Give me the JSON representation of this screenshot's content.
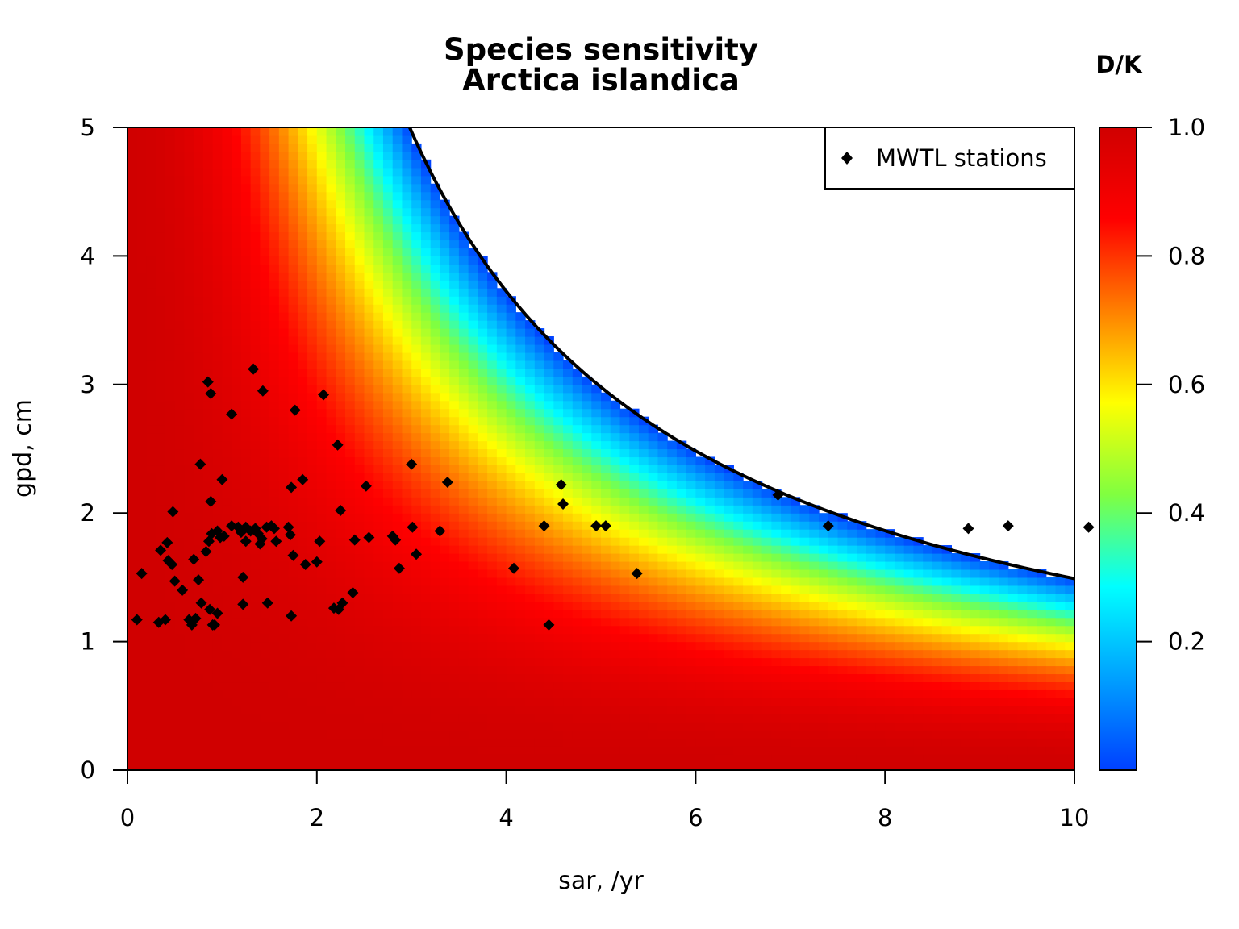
{
  "chart_data": {
    "type": "heatmap",
    "title": "Species sensitivity",
    "subtitle": "Arctica islandica",
    "xlabel": "sar, /yr",
    "ylabel": "gpd, cm",
    "xlim": [
      0,
      10
    ],
    "ylim": [
      0,
      5
    ],
    "x_ticks": [
      "0",
      "2",
      "4",
      "6",
      "8",
      "10"
    ],
    "y_ticks": [
      "0",
      "1",
      "2",
      "3",
      "4",
      "5"
    ],
    "surface": {
      "description_value": "D/K",
      "zero_contour_constant": 14.9,
      "colorscale": [
        "#0040ff",
        "#00a0ff",
        "#00ffff",
        "#80ff40",
        "#ffff00",
        "#ff8000",
        "#ff0000",
        "#d00000"
      ]
    },
    "colorbar": {
      "title": "D/K",
      "range": [
        0,
        1
      ],
      "ticks": [
        "0.2",
        "0.4",
        "0.6",
        "0.8",
        "1.0"
      ]
    },
    "legend": {
      "position": "top-right",
      "entries": [
        {
          "label": "MWTL stations",
          "marker": "diamond",
          "color": "#000000"
        }
      ]
    },
    "series": [
      {
        "name": "MWTL stations",
        "type": "scatter",
        "points": [
          [
            0.1,
            1.17
          ],
          [
            0.15,
            1.53
          ],
          [
            0.33,
            1.15
          ],
          [
            0.35,
            1.71
          ],
          [
            0.4,
            1.17
          ],
          [
            0.42,
            1.77
          ],
          [
            0.43,
            1.63
          ],
          [
            0.47,
            1.6
          ],
          [
            0.48,
            2.01
          ],
          [
            0.5,
            1.47
          ],
          [
            0.58,
            1.4
          ],
          [
            0.65,
            1.17
          ],
          [
            0.68,
            1.13
          ],
          [
            0.7,
            1.64
          ],
          [
            0.72,
            1.18
          ],
          [
            0.75,
            1.48
          ],
          [
            0.77,
            2.38
          ],
          [
            0.78,
            1.3
          ],
          [
            0.83,
            1.7
          ],
          [
            0.85,
            3.02
          ],
          [
            0.86,
            1.78
          ],
          [
            0.87,
            1.25
          ],
          [
            0.88,
            2.09
          ],
          [
            0.88,
            2.93
          ],
          [
            0.89,
            1.84
          ],
          [
            0.9,
            1.13
          ],
          [
            0.92,
            1.13
          ],
          [
            0.95,
            1.22
          ],
          [
            0.95,
            1.86
          ],
          [
            0.98,
            1.81
          ],
          [
            1.0,
            2.26
          ],
          [
            1.02,
            1.82
          ],
          [
            1.1,
            1.9
          ],
          [
            1.1,
            2.77
          ],
          [
            1.17,
            1.89
          ],
          [
            1.2,
            1.85
          ],
          [
            1.22,
            1.5
          ],
          [
            1.22,
            1.29
          ],
          [
            1.25,
            1.78
          ],
          [
            1.25,
            1.89
          ],
          [
            1.3,
            1.86
          ],
          [
            1.33,
            3.12
          ],
          [
            1.35,
            1.88
          ],
          [
            1.38,
            1.84
          ],
          [
            1.4,
            1.76
          ],
          [
            1.42,
            1.8
          ],
          [
            1.43,
            2.95
          ],
          [
            1.47,
            1.89
          ],
          [
            1.48,
            1.3
          ],
          [
            1.52,
            1.9
          ],
          [
            1.55,
            1.88
          ],
          [
            1.57,
            1.78
          ],
          [
            1.7,
            1.89
          ],
          [
            1.72,
            1.83
          ],
          [
            1.73,
            2.2
          ],
          [
            1.73,
            1.2
          ],
          [
            1.75,
            1.67
          ],
          [
            1.77,
            2.8
          ],
          [
            1.85,
            2.26
          ],
          [
            1.88,
            1.6
          ],
          [
            2.0,
            1.62
          ],
          [
            2.03,
            1.78
          ],
          [
            2.07,
            2.92
          ],
          [
            2.18,
            1.26
          ],
          [
            2.22,
            2.53
          ],
          [
            2.23,
            1.25
          ],
          [
            2.25,
            2.02
          ],
          [
            2.27,
            1.3
          ],
          [
            2.38,
            1.38
          ],
          [
            2.4,
            1.79
          ],
          [
            2.52,
            2.21
          ],
          [
            2.55,
            1.81
          ],
          [
            2.8,
            1.82
          ],
          [
            2.83,
            1.79
          ],
          [
            2.87,
            1.57
          ],
          [
            3.0,
            2.38
          ],
          [
            3.01,
            1.89
          ],
          [
            3.05,
            1.68
          ],
          [
            3.3,
            1.86
          ],
          [
            3.38,
            2.24
          ],
          [
            4.08,
            1.57
          ],
          [
            4.4,
            1.9
          ],
          [
            4.45,
            1.13
          ],
          [
            4.58,
            2.22
          ],
          [
            4.6,
            2.07
          ],
          [
            4.95,
            1.9
          ],
          [
            5.05,
            1.9
          ],
          [
            5.38,
            1.53
          ],
          [
            6.87,
            2.14
          ],
          [
            7.4,
            1.9
          ],
          [
            8.88,
            1.88
          ],
          [
            9.3,
            1.9
          ],
          [
            10.15,
            1.89
          ]
        ]
      }
    ]
  }
}
